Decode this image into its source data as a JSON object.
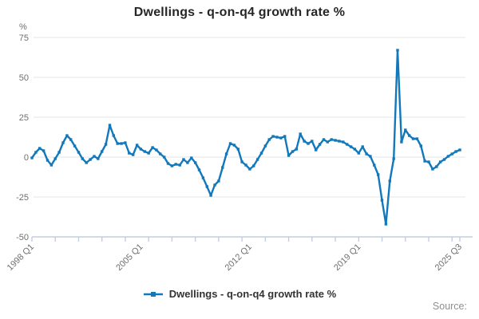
{
  "title": "Dwellings - q-on-q4 growth rate %",
  "y_axis_unit": "%",
  "legend": {
    "label": "Dwellings - q-on-q4 growth rate %"
  },
  "source_label": "Source:",
  "colors": {
    "line": "#1178bb",
    "grid": "#e6e6e6",
    "axis": "#c3cde4",
    "tick_text": "#6f6f6f",
    "title_text": "#262626",
    "legend_text": "#333333",
    "source_text": "#8f8f8f"
  },
  "chart_data": {
    "type": "line",
    "title": "Dwellings - q-on-q4 growth rate %",
    "series_name": "Dwellings - q-on-q4 growth rate %",
    "frequency": "quarterly",
    "x_start": "1998 Q1",
    "x_end": "2025 Q3",
    "ylim": [
      -50,
      75
    ],
    "yticks": [
      75,
      50,
      25,
      0,
      -25,
      -50
    ],
    "grid": "horizontal",
    "legend_position": "bottom-center",
    "marker": "square",
    "minor_tick_every": 6,
    "xtick_labels": [
      {
        "label": "1998 Q1",
        "index": 0
      },
      {
        "label": "2005 Q1",
        "index": 28
      },
      {
        "label": "2012 Q1",
        "index": 56
      },
      {
        "label": "2019 Q1",
        "index": 84
      },
      {
        "label": "2025 Q3",
        "index": 110
      }
    ],
    "categories": [
      "1998 Q1",
      "1998 Q2",
      "1998 Q3",
      "1998 Q4",
      "1999 Q1",
      "1999 Q2",
      "1999 Q3",
      "1999 Q4",
      "2000 Q1",
      "2000 Q2",
      "2000 Q3",
      "2000 Q4",
      "2001 Q1",
      "2001 Q2",
      "2001 Q3",
      "2001 Q4",
      "2002 Q1",
      "2002 Q2",
      "2002 Q3",
      "2002 Q4",
      "2003 Q1",
      "2003 Q2",
      "2003 Q3",
      "2003 Q4",
      "2004 Q1",
      "2004 Q2",
      "2004 Q3",
      "2004 Q4",
      "2005 Q1",
      "2005 Q2",
      "2005 Q3",
      "2005 Q4",
      "2006 Q1",
      "2006 Q2",
      "2006 Q3",
      "2006 Q4",
      "2007 Q1",
      "2007 Q2",
      "2007 Q3",
      "2007 Q4",
      "2008 Q1",
      "2008 Q2",
      "2008 Q3",
      "2008 Q4",
      "2009 Q1",
      "2009 Q2",
      "2009 Q3",
      "2009 Q4",
      "2010 Q1",
      "2010 Q2",
      "2010 Q3",
      "2010 Q4",
      "2011 Q1",
      "2011 Q2",
      "2011 Q3",
      "2011 Q4",
      "2012 Q1",
      "2012 Q2",
      "2012 Q3",
      "2012 Q4",
      "2013 Q1",
      "2013 Q2",
      "2013 Q3",
      "2013 Q4",
      "2014 Q1",
      "2014 Q2",
      "2014 Q3",
      "2014 Q4",
      "2015 Q1",
      "2015 Q2",
      "2015 Q3",
      "2015 Q4",
      "2016 Q1",
      "2016 Q2",
      "2016 Q3",
      "2016 Q4",
      "2017 Q1",
      "2017 Q2",
      "2017 Q3",
      "2017 Q4",
      "2018 Q1",
      "2018 Q2",
      "2018 Q3",
      "2018 Q4",
      "2019 Q1",
      "2019 Q2",
      "2019 Q3",
      "2019 Q4",
      "2020 Q1",
      "2020 Q2",
      "2020 Q3",
      "2020 Q4",
      "2021 Q1",
      "2021 Q2",
      "2021 Q3",
      "2021 Q4",
      "2022 Q1",
      "2022 Q2",
      "2022 Q3",
      "2022 Q4",
      "2023 Q1",
      "2023 Q2",
      "2023 Q3",
      "2023 Q4",
      "2024 Q1",
      "2024 Q2",
      "2024 Q3",
      "2024 Q4",
      "2025 Q1",
      "2025 Q2",
      "2025 Q3"
    ],
    "values": [
      -0.5,
      3,
      5.5,
      4,
      -2,
      -5,
      -1,
      3,
      9,
      13.5,
      11,
      7,
      3,
      -1,
      -3.5,
      -1.5,
      0.5,
      -1,
      3.5,
      8,
      20,
      13.5,
      8.5,
      8.5,
      9,
      2.5,
      1.5,
      7.5,
      5,
      3.5,
      2.5,
      6,
      4.5,
      2,
      0,
      -4,
      -5.5,
      -4.5,
      -5,
      -1.5,
      -3.5,
      -0.5,
      -3.5,
      -8,
      -13,
      -18.5,
      -24,
      -17.5,
      -15,
      -6.5,
      2,
      8.5,
      7.5,
      5,
      -3,
      -5,
      -7.5,
      -5.5,
      -1.5,
      2.5,
      7,
      11,
      13,
      12.5,
      12,
      13,
      1,
      3.5,
      5,
      14.5,
      10,
      8.5,
      10,
      4.5,
      8,
      11,
      9.5,
      11,
      10.5,
      10,
      9.5,
      8,
      6.5,
      5,
      2.5,
      6.5,
      2,
      0.5,
      -5,
      -11,
      -27,
      -42,
      -15,
      -1,
      67,
      9.5,
      17,
      13.5,
      11.5,
      11.5,
      7,
      -2.5,
      -3,
      -7.5,
      -6,
      -3,
      -1.5,
      0.5,
      2,
      3.5,
      4.5
    ]
  }
}
